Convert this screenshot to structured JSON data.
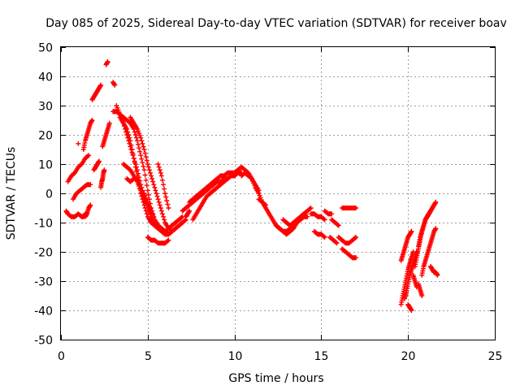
{
  "chart_data": {
    "type": "scatter",
    "title": "Day 085 of 2025, Sidereal Day-to-day VTEC variation (SDTVAR) for receiver boav",
    "xlabel": "GPS time / hours",
    "ylabel": "SDTVAR / TECUs",
    "xlim": [
      0,
      25
    ],
    "ylim": [
      -50,
      50
    ],
    "xticks": [
      0,
      5,
      10,
      15,
      20,
      25
    ],
    "yticks": [
      -50,
      -40,
      -30,
      -20,
      -10,
      0,
      10,
      20,
      30,
      40,
      50
    ],
    "xtick_labels": [
      "0",
      "5",
      "10",
      "15",
      "20",
      "25"
    ],
    "ytick_labels": [
      "-50",
      "-40",
      "-30",
      "-20",
      "-10",
      "0",
      "10",
      "20",
      "30",
      "40",
      "50"
    ],
    "grid": true,
    "marker": "+",
    "color": "#ff0000",
    "series": [
      {
        "name": "s01",
        "x": [
          0.3,
          0.4,
          0.6,
          0.8,
          1.0,
          1.2,
          1.3,
          1.4
        ],
        "y": [
          -6,
          -7,
          -8,
          -8,
          -7,
          -8,
          -8,
          -7
        ]
      },
      {
        "name": "s02",
        "x": [
          0.4,
          0.6,
          0.8,
          1.0,
          1.2,
          1.4,
          1.6
        ],
        "y": [
          4,
          6,
          7,
          9,
          10,
          12,
          13
        ]
      },
      {
        "name": "s03",
        "x": [
          0.7,
          0.9,
          1.1,
          1.3,
          1.5,
          1.7
        ],
        "y": [
          -2,
          0,
          1,
          2,
          3,
          3
        ]
      },
      {
        "name": "s04",
        "x": [
          1.3,
          1.4,
          1.5,
          1.6,
          1.7,
          1.8
        ],
        "y": [
          15,
          18,
          20,
          22,
          24,
          25
        ]
      },
      {
        "name": "s05",
        "x": [
          1.4,
          1.5,
          1.6,
          1.7
        ],
        "y": [
          -8,
          -7,
          -5,
          -4
        ]
      },
      {
        "name": "s06",
        "x": [
          1.0
        ],
        "y": [
          17
        ]
      },
      {
        "name": "s07",
        "x": [
          1.8,
          1.9,
          2.0,
          2.1,
          2.2,
          2.3
        ],
        "y": [
          32,
          33,
          34,
          35,
          36,
          37
        ]
      },
      {
        "name": "s08",
        "x": [
          1.9,
          2.0,
          2.1,
          2.2
        ],
        "y": [
          8,
          9,
          10,
          11
        ]
      },
      {
        "name": "s09",
        "x": [
          2.3,
          2.35,
          2.4,
          2.45,
          2.5
        ],
        "y": [
          2,
          4,
          5,
          7,
          8
        ]
      },
      {
        "name": "s10",
        "x": [
          2.4,
          2.5,
          2.6,
          2.7,
          2.8
        ],
        "y": [
          16,
          18,
          20,
          22,
          24
        ]
      },
      {
        "name": "s11",
        "x": [
          2.6,
          2.7
        ],
        "y": [
          44,
          45
        ]
      },
      {
        "name": "s12",
        "x": [
          3.0,
          3.1
        ],
        "y": [
          38,
          37
        ]
      },
      {
        "name": "s13",
        "x": [
          3.0,
          3.2,
          3.4,
          3.6,
          3.8,
          4.0,
          4.2,
          4.4,
          4.6,
          4.8,
          5.0,
          5.2,
          5.4,
          5.6,
          5.8,
          6.0,
          6.2,
          6.4,
          6.6,
          6.8,
          7.0
        ],
        "y": [
          28,
          28,
          27,
          26,
          25,
          24,
          22,
          18,
          13,
          8,
          1,
          -5,
          -9,
          -11,
          -12,
          -13,
          -14,
          -13,
          -12,
          -11,
          -10
        ]
      },
      {
        "name": "s14",
        "x": [
          3.2,
          3.4,
          3.6,
          3.8,
          4.0,
          4.2,
          4.4,
          4.6,
          4.8,
          5.0,
          5.2,
          5.4,
          5.6,
          5.8,
          6.0,
          6.2,
          6.4,
          6.6,
          6.8,
          7.0,
          7.2
        ],
        "y": [
          30,
          27,
          24,
          20,
          16,
          12,
          8,
          3,
          -1,
          -5,
          -8,
          -11,
          -12,
          -13,
          -14,
          -14,
          -13,
          -12,
          -11,
          -10,
          -9
        ]
      },
      {
        "name": "s15",
        "x": [
          3.4,
          3.6,
          3.8,
          4.0,
          4.2,
          4.4,
          4.6,
          4.8,
          5.0,
          5.2,
          5.4,
          5.6
        ],
        "y": [
          26,
          24,
          22,
          18,
          12,
          6,
          0,
          -4,
          -8,
          -10,
          -11,
          -12
        ]
      },
      {
        "name": "s16",
        "x": [
          4.0,
          4.2,
          4.4,
          4.6,
          4.8,
          5.0,
          5.2,
          5.4,
          5.6,
          5.8,
          6.0,
          6.2,
          6.4
        ],
        "y": [
          26,
          24,
          22,
          19,
          15,
          10,
          6,
          2,
          -2,
          -6,
          -10,
          -12,
          -13
        ]
      },
      {
        "name": "s17",
        "x": [
          3.6,
          3.8,
          4.0,
          4.2,
          4.4,
          4.6,
          4.8,
          5.0,
          5.2
        ],
        "y": [
          10,
          9,
          8,
          6,
          4,
          1,
          -2,
          -4,
          -6
        ]
      },
      {
        "name": "s18",
        "x": [
          3.8,
          4.0,
          4.2
        ],
        "y": [
          5,
          4,
          5
        ]
      },
      {
        "name": "s19",
        "x": [
          4.8,
          5.0,
          5.2,
          5.4,
          5.6,
          5.8,
          6.0,
          6.2,
          6.4,
          6.6,
          6.8,
          7.0
        ],
        "y": [
          0,
          -3,
          -6,
          -9,
          -11,
          -12,
          -13,
          -12,
          -11,
          -10,
          -9,
          -8
        ]
      },
      {
        "name": "s20",
        "x": [
          5.0,
          5.2,
          5.4,
          5.6,
          5.8,
          6.0,
          6.2
        ],
        "y": [
          -15,
          -16,
          -16,
          -17,
          -17,
          -17,
          -16
        ]
      },
      {
        "name": "s21",
        "x": [
          5.6,
          5.8,
          6.0,
          6.2
        ],
        "y": [
          10,
          6,
          0,
          -5
        ]
      },
      {
        "name": "s22",
        "x": [
          7.0,
          7.2,
          7.4,
          7.6,
          7.8,
          8.0,
          8.2,
          8.4,
          8.6,
          8.8,
          9.0,
          9.2,
          9.4,
          9.6,
          9.8,
          10.0
        ],
        "y": [
          -6,
          -5,
          -4,
          -3,
          -2,
          -1,
          0,
          1,
          2,
          3,
          4,
          4,
          5,
          5,
          6,
          7
        ]
      },
      {
        "name": "s23",
        "x": [
          7.4,
          7.6,
          7.8,
          8.0,
          8.2,
          8.4,
          8.6,
          8.8,
          9.0,
          9.2,
          9.4,
          9.6,
          9.8,
          10.0,
          10.2
        ],
        "y": [
          -3,
          -2,
          -1,
          0,
          1,
          2,
          3,
          4,
          5,
          6,
          6,
          7,
          7,
          7,
          8
        ]
      },
      {
        "name": "s24",
        "x": [
          7.6,
          7.8,
          8.0,
          8.2,
          8.4,
          8.6,
          8.8,
          9.0,
          9.2,
          9.4,
          9.6,
          9.8,
          10.0,
          10.2,
          10.4
        ],
        "y": [
          -9,
          -7,
          -5,
          -3,
          -1,
          0,
          1,
          2,
          3,
          4,
          5,
          6,
          6,
          7,
          7
        ]
      },
      {
        "name": "s25",
        "x": [
          7.2,
          7.3,
          7.4
        ],
        "y": [
          -8,
          -7,
          -6
        ]
      },
      {
        "name": "s26",
        "x": [
          10.2,
          10.4,
          10.6,
          10.8,
          11.0,
          11.2,
          11.4,
          11.6,
          11.8,
          12.0,
          12.2,
          12.4,
          12.6,
          12.8,
          13.0,
          13.2,
          13.4,
          13.6,
          13.8,
          14.0,
          14.2
        ],
        "y": [
          8,
          9,
          8,
          7,
          5,
          2,
          0,
          -3,
          -5,
          -7,
          -9,
          -11,
          -12,
          -13,
          -13,
          -12,
          -11,
          -10,
          -9,
          -8,
          -8
        ]
      },
      {
        "name": "s27",
        "x": [
          10.4,
          10.6,
          10.8,
          11.0,
          11.2,
          11.4
        ],
        "y": [
          6,
          7,
          6,
          5,
          3,
          1
        ]
      },
      {
        "name": "s28",
        "x": [
          11.4,
          11.6,
          11.8
        ],
        "y": [
          -2,
          -3,
          -4
        ]
      },
      {
        "name": "s29",
        "x": [
          12.4,
          12.6,
          12.8,
          13.0,
          13.2,
          13.4,
          13.6,
          13.8,
          14.0,
          14.2,
          14.4
        ],
        "y": [
          -11,
          -12,
          -13,
          -14,
          -13,
          -12,
          -10,
          -8,
          -7,
          -6,
          -5
        ]
      },
      {
        "name": "s30",
        "x": [
          12.8,
          13.0,
          13.2,
          13.4,
          13.6,
          13.8,
          14.0
        ],
        "y": [
          -9,
          -10,
          -11,
          -10,
          -9,
          -8,
          -7
        ]
      },
      {
        "name": "s31",
        "x": [
          14.4,
          14.6,
          14.8,
          15.0,
          15.2
        ],
        "y": [
          -7,
          -7,
          -8,
          -8,
          -9
        ]
      },
      {
        "name": "s32",
        "x": [
          15.2,
          15.4,
          15.6
        ],
        "y": [
          -6,
          -7,
          -7
        ]
      },
      {
        "name": "s33",
        "x": [
          15.6,
          15.8,
          16.0
        ],
        "y": [
          -9,
          -10,
          -11
        ]
      },
      {
        "name": "s34",
        "x": [
          14.6,
          14.8,
          15.0,
          15.2
        ],
        "y": [
          -13,
          -14,
          -14,
          -15
        ]
      },
      {
        "name": "s35",
        "x": [
          15.5,
          15.7,
          15.9
        ],
        "y": [
          -15,
          -16,
          -17
        ]
      },
      {
        "name": "s36",
        "x": [
          16.2,
          16.4,
          16.6,
          16.8,
          17.0
        ],
        "y": [
          -5,
          -5,
          -5,
          -5,
          -5
        ]
      },
      {
        "name": "s37",
        "x": [
          16.0,
          16.2,
          16.4,
          16.6,
          16.8,
          17.0
        ],
        "y": [
          -15,
          -16,
          -17,
          -17,
          -16,
          -15
        ]
      },
      {
        "name": "s38",
        "x": [
          16.2,
          16.4,
          16.6,
          16.8,
          17.0
        ],
        "y": [
          -19,
          -20,
          -21,
          -22,
          -22
        ]
      },
      {
        "name": "s39",
        "x": [
          19.6,
          19.7,
          19.8,
          19.9,
          20.0,
          20.1,
          20.2
        ],
        "y": [
          -23,
          -21,
          -19,
          -17,
          -15,
          -14,
          -13
        ]
      },
      {
        "name": "s40",
        "x": [
          19.6,
          19.7,
          19.8,
          19.9,
          20.0,
          20.1,
          20.2,
          20.3
        ],
        "y": [
          -38,
          -35,
          -32,
          -29,
          -26,
          -24,
          -22,
          -20
        ]
      },
      {
        "name": "s41",
        "x": [
          19.8,
          19.9,
          20.0,
          20.1,
          20.2,
          20.3,
          20.4,
          20.5
        ],
        "y": [
          -36,
          -34,
          -31,
          -28,
          -26,
          -24,
          -22,
          -20
        ]
      },
      {
        "name": "s42",
        "x": [
          20.4,
          20.5,
          20.6,
          20.7,
          20.8,
          20.9,
          21.0,
          21.1,
          21.2
        ],
        "y": [
          -25,
          -22,
          -19,
          -16,
          -13,
          -11,
          -9,
          -8,
          -7
        ]
      },
      {
        "name": "s43",
        "x": [
          20.6,
          20.7,
          20.8,
          20.9,
          21.0,
          21.1,
          21.2,
          21.3
        ],
        "y": [
          -18,
          -15,
          -13,
          -11,
          -9,
          -8,
          -7,
          -6
        ]
      },
      {
        "name": "s44",
        "x": [
          20.8,
          20.9,
          21.0,
          21.1,
          21.2,
          21.3,
          21.4,
          21.5,
          21.6
        ],
        "y": [
          -28,
          -25,
          -23,
          -21,
          -19,
          -17,
          -15,
          -13,
          -12
        ]
      },
      {
        "name": "s45",
        "x": [
          21.1,
          21.2,
          21.3,
          21.4,
          21.5,
          21.6
        ],
        "y": [
          -8,
          -7,
          -6,
          -5,
          -4,
          -3
        ]
      },
      {
        "name": "s46",
        "x": [
          21.3,
          21.4,
          21.5,
          21.6,
          21.7
        ],
        "y": [
          -25,
          -26,
          -27,
          -27,
          -28
        ]
      },
      {
        "name": "s47",
        "x": [
          20.0,
          20.1,
          20.2
        ],
        "y": [
          -38,
          -39,
          -40
        ]
      },
      {
        "name": "s48",
        "x": [
          20.3,
          20.4,
          20.5
        ],
        "y": [
          -28,
          -30,
          -32
        ]
      },
      {
        "name": "s49",
        "x": [
          20.6,
          20.7,
          20.8
        ],
        "y": [
          -31,
          -33,
          -35
        ]
      }
    ]
  }
}
